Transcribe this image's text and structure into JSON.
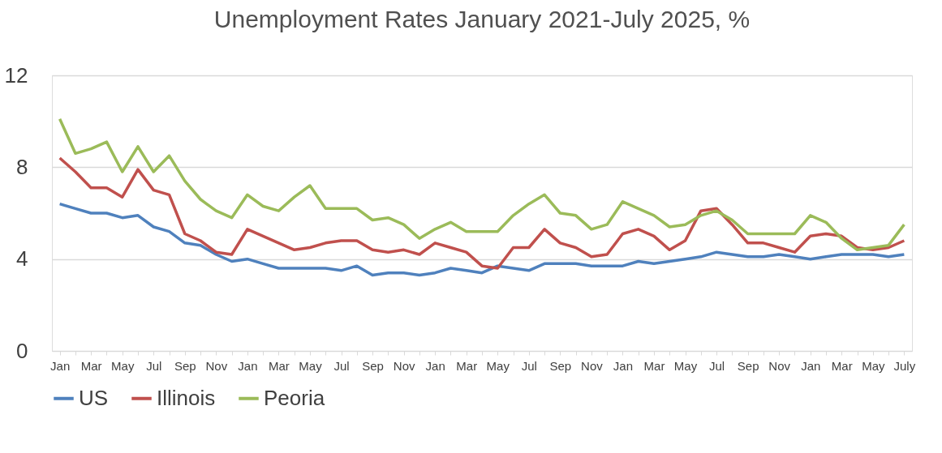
{
  "chart_data": {
    "type": "line",
    "title": "Unemployment Rates January 2021-July 2025, %",
    "categories": [
      "Jan",
      null,
      "Mar",
      null,
      "May",
      null,
      "Jul",
      null,
      "Sep",
      null,
      "Nov",
      null,
      "Jan",
      null,
      "Mar",
      null,
      "May",
      null,
      "Jul",
      null,
      "Sep",
      null,
      "Nov",
      null,
      "Jan",
      null,
      "Mar",
      null,
      "May",
      null,
      "Jul",
      null,
      "Sep",
      null,
      "Nov",
      null,
      "Jan",
      null,
      "Mar",
      null,
      "May",
      null,
      "Jul",
      null,
      "Sep",
      null,
      "Nov",
      null,
      "Jan",
      null,
      "Mar",
      null,
      "May",
      null,
      "July"
    ],
    "series": [
      {
        "name": "US",
        "color": "#4f81bd",
        "values": [
          6.4,
          6.2,
          6.0,
          6.0,
          5.8,
          5.9,
          5.4,
          5.2,
          4.7,
          4.6,
          4.2,
          3.9,
          4.0,
          3.8,
          3.6,
          3.6,
          3.6,
          3.6,
          3.5,
          3.7,
          3.3,
          3.4,
          3.4,
          3.3,
          3.4,
          3.6,
          3.5,
          3.4,
          3.7,
          3.6,
          3.5,
          3.8,
          3.8,
          3.8,
          3.7,
          3.7,
          3.7,
          3.9,
          3.8,
          3.9,
          4.0,
          4.1,
          4.3,
          4.2,
          4.1,
          4.1,
          4.2,
          4.1,
          4.0,
          4.1,
          4.2,
          4.2,
          4.2,
          4.1,
          4.2
        ]
      },
      {
        "name": "Illinois",
        "color": "#c0504d",
        "values": [
          8.4,
          7.8,
          7.1,
          7.1,
          6.7,
          7.9,
          7.0,
          6.8,
          5.1,
          4.8,
          4.3,
          4.2,
          5.3,
          5.0,
          4.7,
          4.4,
          4.5,
          4.7,
          4.8,
          4.8,
          4.4,
          4.3,
          4.4,
          4.2,
          4.7,
          4.5,
          4.3,
          3.7,
          3.6,
          4.5,
          4.5,
          5.3,
          4.7,
          4.5,
          4.1,
          4.2,
          5.1,
          5.3,
          5.0,
          4.4,
          4.8,
          6.1,
          6.2,
          5.5,
          4.7,
          4.7,
          4.5,
          4.3,
          5.0,
          5.1,
          5.0,
          4.5,
          4.4,
          4.5,
          4.8
        ]
      },
      {
        "name": "Peoria",
        "color": "#9bbb59",
        "values": [
          10.1,
          8.6,
          8.8,
          9.1,
          7.8,
          8.9,
          7.8,
          8.5,
          7.4,
          6.6,
          6.1,
          5.8,
          6.8,
          6.3,
          6.1,
          6.7,
          7.2,
          6.2,
          6.2,
          6.2,
          5.7,
          5.8,
          5.5,
          4.9,
          5.3,
          5.6,
          5.2,
          5.2,
          5.2,
          5.9,
          6.4,
          6.8,
          6.0,
          5.9,
          5.3,
          5.5,
          6.5,
          6.2,
          5.9,
          5.4,
          5.5,
          5.9,
          6.1,
          5.7,
          5.1,
          5.1,
          5.1,
          5.1,
          5.9,
          5.6,
          4.9,
          4.4,
          4.5,
          4.6,
          5.5
        ]
      }
    ],
    "ylim": [
      0,
      12
    ],
    "yticks": [
      0,
      4,
      8,
      12
    ],
    "grid": "y",
    "legend": "bottom",
    "marker": "none",
    "line_style": "solid"
  }
}
